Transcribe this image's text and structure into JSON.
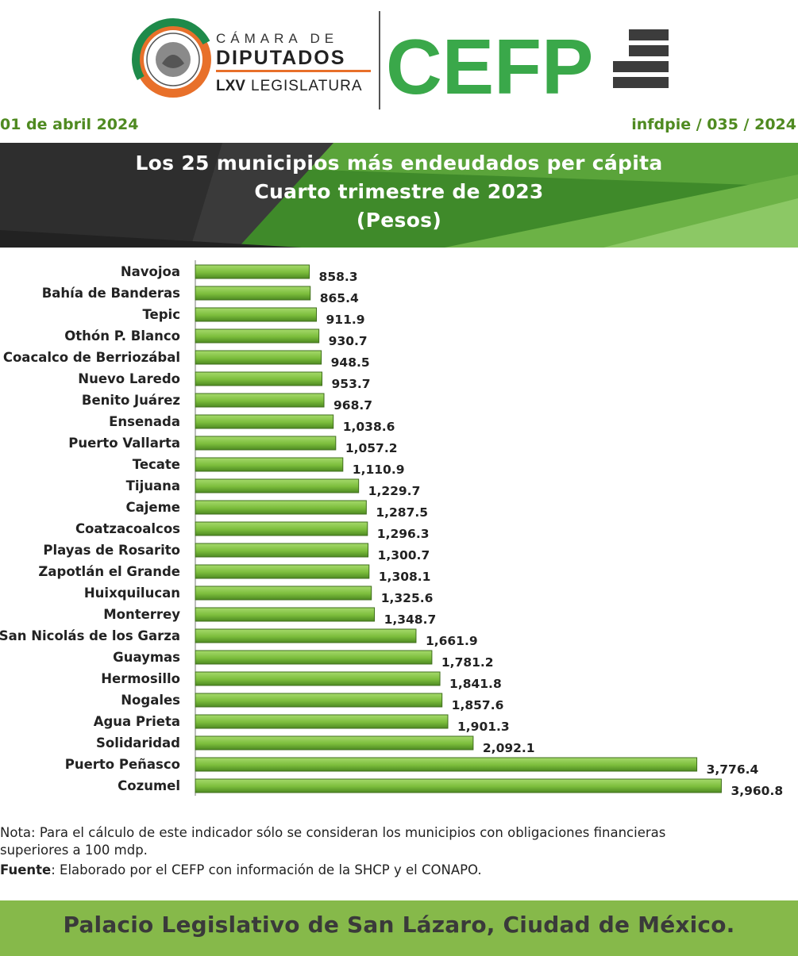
{
  "header": {
    "camara_line": "CÁMARA DE",
    "diputados_line": "DIPUTADOS",
    "legislatura_bold": "LXV",
    "legislatura_rest": "LEGISLATURA",
    "cefp_logo": "CEFP"
  },
  "meta": {
    "date": "01 de abril 2024",
    "code": "infdpie / 035 / 2024"
  },
  "title": {
    "line1": "Los 25 municipios más endeudados per cápita",
    "line2": "Cuarto trimestre de 2023",
    "line3": "(Pesos)"
  },
  "chart_data": {
    "type": "bar",
    "orientation": "horizontal",
    "title": "Los 25 municipios más endeudados per cápita",
    "subtitle": "Cuarto trimestre de 2023 (Pesos)",
    "categories": [
      "Navojoa",
      "Bahía de Banderas",
      "Tepic",
      "Othón P. Blanco",
      "Coacalco de Berriozábal",
      "Nuevo Laredo",
      "Benito Juárez",
      "Ensenada",
      "Puerto Vallarta",
      "Tecate",
      "Tijuana",
      "Cajeme",
      "Coatzacoalcos",
      "Playas de Rosarito",
      "Zapotlán el Grande",
      "Huixquilucan",
      "Monterrey",
      "San Nicolás de los Garza",
      "Guaymas",
      "Hermosillo",
      "Nogales",
      "Agua Prieta",
      "Solidaridad",
      "Puerto Peñasco",
      "Cozumel"
    ],
    "values": [
      858.3,
      865.4,
      911.9,
      930.7,
      948.5,
      953.7,
      968.7,
      1038.6,
      1057.2,
      1110.9,
      1229.7,
      1287.5,
      1296.3,
      1300.7,
      1308.1,
      1325.6,
      1348.7,
      1661.9,
      1781.2,
      1841.8,
      1857.6,
      1901.3,
      2092.1,
      3776.4,
      3960.8
    ],
    "value_labels": [
      "858.3",
      "865.4",
      "911.9",
      "930.7",
      "948.5",
      "953.7",
      "968.7",
      "1,038.6",
      "1,057.2",
      "1,110.9",
      "1,229.7",
      "1,287.5",
      "1,296.3",
      "1,300.7",
      "1,308.1",
      "1,325.6",
      "1,348.7",
      "1,661.9",
      "1,781.2",
      "1,841.8",
      "1,857.6",
      "1,901.3",
      "2,092.1",
      "3,776.4",
      "3,960.8"
    ],
    "xlim": [
      0,
      4000
    ],
    "grid": false,
    "legend": "none",
    "bar_color": "#7cbd3c"
  },
  "notes": {
    "note_line1": "Nota: Para el cálculo de este indicador sólo se consideran los municipios con obligaciones financieras",
    "note_line2": "superiores a 100 mdp.",
    "source_label": "Fuente",
    "source_text": ":  Elaborado por el CEFP con información de la SHCP y el CONAPO."
  },
  "footer": {
    "text": "Palacio Legislativo de San Lázaro, Ciudad de México."
  },
  "colors": {
    "brand_green": "#4f8a21",
    "cefp_green": "#3aa84a",
    "bar_green": "#7cbd3c",
    "footer_green": "#86b94a",
    "banner_dark": "#2e2e2e",
    "logo_orange": "#e8702a"
  }
}
